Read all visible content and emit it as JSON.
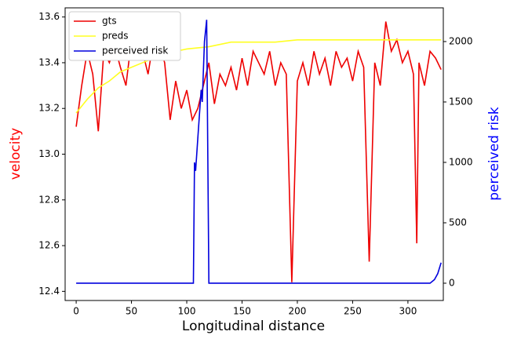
{
  "chart_data": {
    "type": "line",
    "xlabel": "Longitudinal distance",
    "ylabel": "velocity",
    "y2label": "perceived risk",
    "ylabel_color": "red",
    "y2label_color": "blue",
    "xlim": [
      -10,
      332
    ],
    "xticks": [
      0,
      50,
      100,
      150,
      200,
      250,
      300
    ],
    "ylim": [
      12.36,
      13.64
    ],
    "yticks": [
      12.4,
      12.6,
      12.8,
      {
        "value": 13,
        "label": "13.0"
      },
      13.2,
      13.4,
      13.6
    ],
    "y2lim": [
      -143,
      2279
    ],
    "y2ticks": [
      0,
      500,
      1000,
      1500,
      2000
    ],
    "legend": "upper left",
    "series": [
      {
        "name": "gts",
        "color": "#ee0000",
        "x": [
          0,
          5,
          10,
          15,
          20,
          25,
          30,
          35,
          40,
          45,
          50,
          55,
          60,
          65,
          70,
          75,
          80,
          85,
          90,
          95,
          100,
          105,
          110,
          115,
          120,
          125,
          130,
          135,
          140,
          145,
          150,
          155,
          160,
          165,
          170,
          175,
          180,
          185,
          190,
          195,
          200,
          205,
          210,
          215,
          220,
          225,
          230,
          235,
          240,
          245,
          250,
          255,
          260,
          265,
          270,
          275,
          280,
          285,
          290,
          295,
          300,
          305,
          308,
          310,
          315,
          320,
          325,
          330
        ],
        "values": [
          13.12,
          13.3,
          13.45,
          13.35,
          13.1,
          13.45,
          13.4,
          13.47,
          13.38,
          13.3,
          13.5,
          13.42,
          13.45,
          13.35,
          13.5,
          13.48,
          13.4,
          13.15,
          13.32,
          13.2,
          13.28,
          13.15,
          13.2,
          13.3,
          13.4,
          13.22,
          13.35,
          13.3,
          13.38,
          13.28,
          13.42,
          13.3,
          13.45,
          13.4,
          13.35,
          13.45,
          13.3,
          13.4,
          13.35,
          12.44,
          13.32,
          13.4,
          13.3,
          13.45,
          13.35,
          13.42,
          13.3,
          13.45,
          13.38,
          13.42,
          13.32,
          13.45,
          13.38,
          12.53,
          13.4,
          13.3,
          13.58,
          13.45,
          13.5,
          13.4,
          13.45,
          13.35,
          12.61,
          13.4,
          13.3,
          13.45,
          13.42,
          13.37
        ]
      },
      {
        "name": "preds",
        "color": "#ffff22",
        "x": [
          0,
          10,
          20,
          30,
          40,
          50,
          60,
          70,
          80,
          90,
          100,
          120,
          140,
          160,
          180,
          200,
          220,
          240,
          260,
          280,
          300,
          320,
          330
        ],
        "values": [
          13.18,
          13.24,
          13.29,
          13.32,
          13.36,
          13.38,
          13.4,
          13.42,
          13.44,
          13.45,
          13.46,
          13.47,
          13.49,
          13.49,
          13.49,
          13.5,
          13.5,
          13.5,
          13.5,
          13.5,
          13.5,
          13.5,
          13.5
        ]
      },
      {
        "name": "perceived risk",
        "color": "#0000dd",
        "axis": "y2",
        "x": [
          0,
          106,
          107,
          108,
          110,
          113,
          114,
          116,
          118,
          120,
          200,
          320,
          324,
          327,
          330
        ],
        "values": [
          0,
          0,
          1000,
          930,
          1200,
          1600,
          1500,
          2000,
          2180,
          0,
          0,
          0,
          30,
          80,
          170
        ]
      }
    ]
  }
}
